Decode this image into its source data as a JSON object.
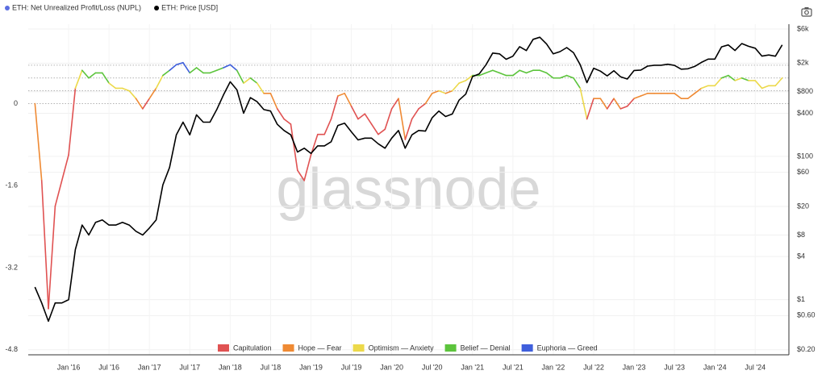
{
  "chart_data": {
    "type": "line",
    "watermark": "glassnode",
    "x": [
      "2015-08",
      "2015-09",
      "2015-10",
      "2015-11",
      "2015-12",
      "2016-01",
      "2016-02",
      "2016-03",
      "2016-04",
      "2016-05",
      "2016-06",
      "2016-07",
      "2016-08",
      "2016-09",
      "2016-10",
      "2016-11",
      "2016-12",
      "2017-01",
      "2017-02",
      "2017-03",
      "2017-04",
      "2017-05",
      "2017-06",
      "2017-07",
      "2017-08",
      "2017-09",
      "2017-10",
      "2017-11",
      "2017-12",
      "2018-01",
      "2018-02",
      "2018-03",
      "2018-04",
      "2018-05",
      "2018-06",
      "2018-07",
      "2018-08",
      "2018-09",
      "2018-10",
      "2018-11",
      "2018-12",
      "2019-01",
      "2019-02",
      "2019-03",
      "2019-04",
      "2019-05",
      "2019-06",
      "2019-07",
      "2019-08",
      "2019-09",
      "2019-10",
      "2019-11",
      "2019-12",
      "2020-01",
      "2020-02",
      "2020-03",
      "2020-04",
      "2020-05",
      "2020-06",
      "2020-07",
      "2020-08",
      "2020-09",
      "2020-10",
      "2020-11",
      "2020-12",
      "2021-01",
      "2021-02",
      "2021-03",
      "2021-04",
      "2021-05",
      "2021-06",
      "2021-07",
      "2021-08",
      "2021-09",
      "2021-10",
      "2021-11",
      "2021-12",
      "2022-01",
      "2022-02",
      "2022-03",
      "2022-04",
      "2022-05",
      "2022-06",
      "2022-07",
      "2022-08",
      "2022-09",
      "2022-10",
      "2022-11",
      "2022-12",
      "2023-01",
      "2023-02",
      "2023-03",
      "2023-04",
      "2023-05",
      "2023-06",
      "2023-07",
      "2023-08",
      "2023-09",
      "2023-10",
      "2023-11",
      "2023-12",
      "2024-01",
      "2024-02",
      "2024-03",
      "2024-04",
      "2024-05",
      "2024-06",
      "2024-07",
      "2024-08",
      "2024-09",
      "2024-10",
      "2024-11"
    ],
    "xlim": [
      "2015-07",
      "2024-12"
    ],
    "xticks": [
      {
        "value": "2016-01",
        "label": "Jan '16"
      },
      {
        "value": "2016-07",
        "label": "Jul '16"
      },
      {
        "value": "2017-01",
        "label": "Jan '17"
      },
      {
        "value": "2017-07",
        "label": "Jul '17"
      },
      {
        "value": "2018-01",
        "label": "Jan '18"
      },
      {
        "value": "2018-07",
        "label": "Jul '18"
      },
      {
        "value": "2019-01",
        "label": "Jan '19"
      },
      {
        "value": "2019-07",
        "label": "Jul '19"
      },
      {
        "value": "2020-01",
        "label": "Jan '20"
      },
      {
        "value": "2020-07",
        "label": "Jul '20"
      },
      {
        "value": "2021-01",
        "label": "Jan '21"
      },
      {
        "value": "2021-07",
        "label": "Jul '21"
      },
      {
        "value": "2022-01",
        "label": "Jan '22"
      },
      {
        "value": "2022-07",
        "label": "Jul '22"
      },
      {
        "value": "2023-01",
        "label": "Jan '23"
      },
      {
        "value": "2023-07",
        "label": "Jul '23"
      },
      {
        "value": "2024-01",
        "label": "Jan '24"
      },
      {
        "value": "2024-07",
        "label": "Jul '24"
      }
    ],
    "ylim": [
      -4.9,
      1.55
    ],
    "yticks": [
      0,
      -1.6,
      -3.2,
      -4.8
    ],
    "y2lim": [
      0.17,
      7000
    ],
    "y2log": true,
    "y2ticks": [
      {
        "value": 6000,
        "label": "$6k"
      },
      {
        "value": 2000,
        "label": "$2k"
      },
      {
        "value": 800,
        "label": "$800"
      },
      {
        "value": 400,
        "label": "$400"
      },
      {
        "value": 100,
        "label": "$100"
      },
      {
        "value": 60,
        "label": "$60"
      },
      {
        "value": 20,
        "label": "$20"
      },
      {
        "value": 8,
        "label": "$8"
      },
      {
        "value": 4,
        "label": "$4"
      },
      {
        "value": 1,
        "label": "$1"
      },
      {
        "value": 0.6,
        "label": "$0.60"
      },
      {
        "value": 0.2,
        "label": "$0.20"
      }
    ],
    "grid": true,
    "zones": [
      {
        "name": "Capitulation",
        "color": "#e05252"
      },
      {
        "name": "Hope — Fear",
        "color": "#ef8a34",
        "from": 0
      },
      {
        "name": "Optimism — Anxiety",
        "color": "#ecd94a",
        "from": 0.25
      },
      {
        "name": "Belief — Denial",
        "color": "#5cc43c",
        "from": 0.5
      },
      {
        "name": "Euphoria — Greed",
        "color": "#3f5fdc",
        "from": 0.75
      }
    ],
    "series": [
      {
        "name": "ETH: Net Unrealized Profit/Loss (NUPL)",
        "color": "#5b6ee1",
        "values": [
          0,
          -1.5,
          -4.0,
          -2.0,
          -1.5,
          -1.0,
          0.3,
          0.65,
          0.5,
          0.6,
          0.6,
          0.4,
          0.3,
          0.3,
          0.25,
          0.1,
          -0.1,
          0.1,
          0.3,
          0.55,
          0.65,
          0.76,
          0.8,
          0.6,
          0.7,
          0.6,
          0.6,
          0.65,
          0.7,
          0.76,
          0.65,
          0.4,
          0.5,
          0.4,
          0.2,
          0.2,
          -0.1,
          -0.3,
          -0.4,
          -1.3,
          -1.5,
          -1.0,
          -0.6,
          -0.6,
          -0.3,
          0.15,
          0.2,
          -0.05,
          -0.3,
          -0.2,
          -0.4,
          -0.6,
          -0.5,
          -0.1,
          0.1,
          -0.7,
          -0.3,
          -0.1,
          0.0,
          0.2,
          0.25,
          0.2,
          0.25,
          0.4,
          0.45,
          0.55,
          0.55,
          0.6,
          0.65,
          0.6,
          0.55,
          0.55,
          0.65,
          0.6,
          0.65,
          0.65,
          0.6,
          0.5,
          0.5,
          0.55,
          0.5,
          0.3,
          -0.3,
          0.1,
          0.1,
          -0.1,
          0.1,
          -0.1,
          -0.05,
          0.1,
          0.15,
          0.2,
          0.2,
          0.2,
          0.2,
          0.2,
          0.1,
          0.1,
          0.2,
          0.3,
          0.35,
          0.35,
          0.5,
          0.55,
          0.45,
          0.5,
          0.45,
          0.45,
          0.3,
          0.35,
          0.35,
          0.5
        ]
      },
      {
        "name": "ETH: Price [USD]",
        "color": "#000000",
        "axis": "y2",
        "values": [
          1.5,
          0.9,
          0.5,
          0.9,
          0.9,
          1.0,
          5,
          11,
          8,
          12,
          13,
          11,
          11,
          12,
          11,
          9,
          8,
          10,
          13,
          40,
          70,
          200,
          300,
          200,
          380,
          300,
          300,
          450,
          720,
          1100,
          850,
          400,
          660,
          580,
          450,
          430,
          280,
          230,
          200,
          115,
          130,
          110,
          140,
          140,
          160,
          270,
          290,
          220,
          170,
          180,
          180,
          150,
          130,
          180,
          230,
          130,
          200,
          230,
          225,
          345,
          430,
          360,
          390,
          610,
          740,
          1300,
          1420,
          1900,
          2770,
          2700,
          2270,
          2500,
          3400,
          3000,
          4300,
          4600,
          3700,
          2700,
          2900,
          3300,
          2800,
          1900,
          1070,
          1700,
          1550,
          1330,
          1570,
          1290,
          1200,
          1580,
          1600,
          1820,
          1870,
          1870,
          1930,
          1860,
          1650,
          1670,
          1800,
          2050,
          2280,
          2280,
          3380,
          3600,
          3010,
          3760,
          3440,
          3230,
          2510,
          2600,
          2500,
          3600
        ]
      }
    ]
  }
}
